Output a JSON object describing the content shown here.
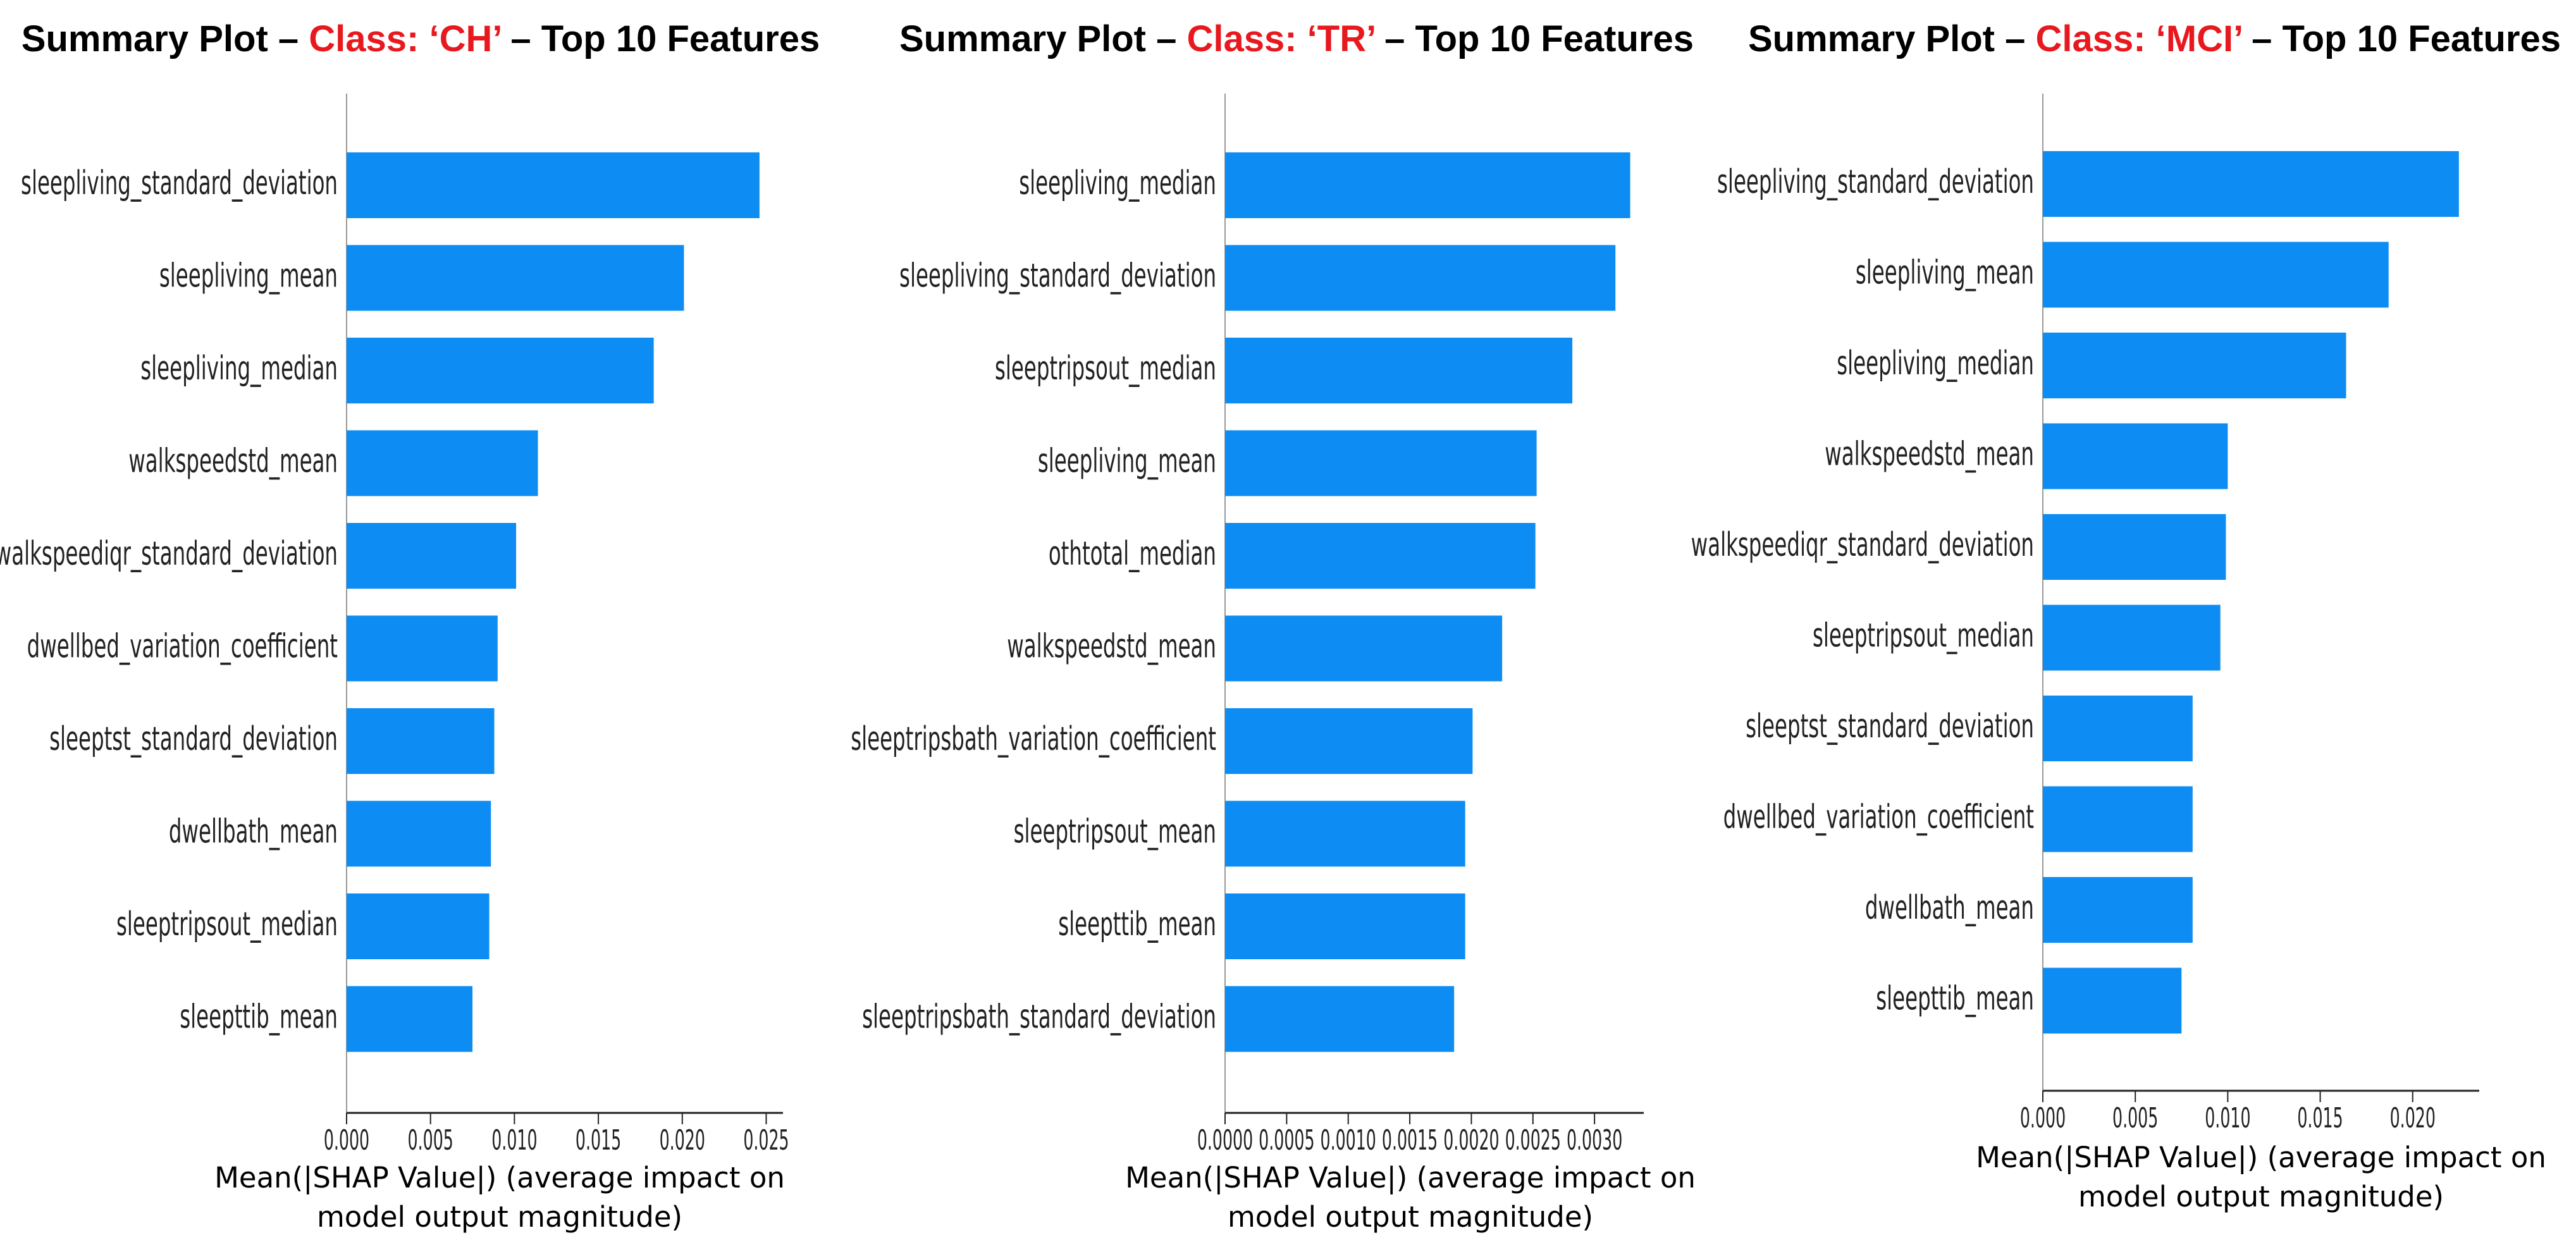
{
  "colors": {
    "bar": "#0d8df3",
    "title_class": "#e8191e",
    "axis": "#222222"
  },
  "panels": [
    {
      "title_prefix": "Summary Plot – ",
      "title_class": "Class: ‘CH’",
      "title_suffix": " – Top 10 Features"
    },
    {
      "title_prefix": "Summary Plot – ",
      "title_class": "Class: ‘TR’",
      "title_suffix": " – Top 10 Features"
    },
    {
      "title_prefix": "Summary Plot – ",
      "title_class": "Class: ‘MCI’",
      "title_suffix": " – Top 10 Features"
    }
  ],
  "chart_data": [
    {
      "type": "bar",
      "orientation": "horizontal",
      "title": "Summary Plot – Class: ‘CH’ – Top 10 Features",
      "xlabel": "Mean(|SHAP Value|) (average impact on model output magnitude)",
      "xlim": [
        0,
        0.026
      ],
      "xticks": [
        "0.000",
        "0.005",
        "0.010",
        "0.015",
        "0.020",
        "0.025"
      ],
      "xtick_values": [
        0,
        0.005,
        0.01,
        0.015,
        0.02,
        0.025
      ],
      "categories": [
        "sleepliving_standard_deviation",
        "sleepliving_mean",
        "sleepliving_median",
        "walkspeedstd_mean",
        "walkspeediqr_standard_deviation",
        "dwellbed_variation_coefficient",
        "sleeptst_standard_deviation",
        "dwellbath_mean",
        "sleeptripsout_median",
        "sleepttib_mean"
      ],
      "labels": [
        "sleepliving_standard_deviation",
        "sleepliving_mean",
        "sleepliving_median",
        "walkspeedstd_mean",
        "walkspeediqr_standard_deviation",
        "dwellbed_variation_coefficient",
        "sleeptst_standard_deviation",
        "dwellbath_mean",
        "sleeptripsout_median",
        "sleepttib_mean"
      ],
      "values": [
        0.0246,
        0.0201,
        0.0183,
        0.0114,
        0.0101,
        0.009,
        0.0088,
        0.0086,
        0.0085,
        0.0075
      ]
    },
    {
      "type": "bar",
      "orientation": "horizontal",
      "title": "Summary Plot – Class: ‘TR’ – Top 10 Features",
      "xlabel": "Mean(|SHAP Value|) (average impact on model output magnitude)",
      "xlim": [
        0,
        0.0034
      ],
      "xticks": [
        "0.0000",
        "0.0005",
        "0.0010",
        "0.0015",
        "0.0020",
        "0.0025",
        "0.0030"
      ],
      "xtick_values": [
        0,
        0.0005,
        0.001,
        0.0015,
        0.002,
        0.0025,
        0.003
      ],
      "categories": [
        "sleepliving_median",
        "sleepliving_standard_deviation",
        "sleeptripsout_median",
        "sleepliving_mean",
        "othtotal_median",
        "walkspeedstd_mean",
        "sleeptripsbath_variation_coefficient",
        "sleeptripsout_mean",
        "sleepttib_mean",
        "sleeptripsbath_standard_deviation"
      ],
      "labels": [
        "sleepliving_median",
        "sleepliving_standard_deviation",
        "sleeptripsout_median",
        "sleepliving_mean",
        "othtotal_median",
        "walkspeedstd_mean",
        "sleeptripsbath_variation_coefficient",
        "sleeptripsout_mean",
        "sleepttib_mean",
        "sleeptripsbath_standard_deviation"
      ],
      "values": [
        0.00329,
        0.00317,
        0.00282,
        0.00253,
        0.00252,
        0.00225,
        0.00201,
        0.00195,
        0.00195,
        0.00186
      ]
    },
    {
      "type": "bar",
      "orientation": "horizontal",
      "title": "Summary Plot – Class: ‘MCI’ – Top 10 Features",
      "xlabel": "Mean(|SHAP Value|) (average impact on model output magnitude)",
      "xlim": [
        0,
        0.0236
      ],
      "xticks": [
        "0.000",
        "0.005",
        "0.010",
        "0.015",
        "0.020"
      ],
      "xtick_values": [
        0,
        0.005,
        0.01,
        0.015,
        0.02
      ],
      "categories": [
        "sleepliving_standard_deviation",
        "sleepliving_mean",
        "sleepliving_median",
        "walkspeedstd_mean",
        "walkspeediqr_standard_deviation",
        "sleeptripsout_median",
        "sleeptst_standard_deviation",
        "dwellbed_variation_coefficient",
        "dwellbath_mean",
        "sleepttib_mean"
      ],
      "labels": [
        "sleepliving_standard_deviation",
        "sleepliving_mean",
        "sleepliving_median",
        "walkspeedstd_mean",
        "walkspeediqr_standard_deviation",
        "sleeptripsout_median",
        "sleeptst_standard_deviation",
        "dwellbed_variation_coefficient",
        "dwellbath_mean",
        "sleepttib_mean"
      ],
      "values": [
        0.0225,
        0.0187,
        0.0164,
        0.01,
        0.0099,
        0.0096,
        0.0081,
        0.0081,
        0.0081,
        0.0075
      ]
    }
  ]
}
